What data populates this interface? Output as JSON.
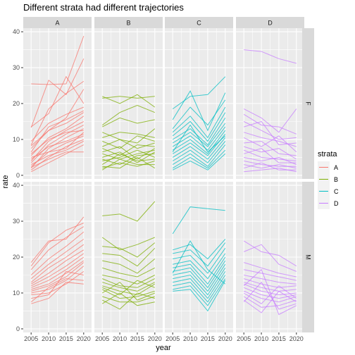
{
  "chart_data": {
    "type": "line",
    "title": "Different strata had different trajectories",
    "xlabel": "year",
    "ylabel": "rate",
    "x": [
      2005,
      2010,
      2015,
      2020
    ],
    "x_ticks": [
      "2005",
      "2010",
      "2015",
      "2020"
    ],
    "ylim": [
      -1,
      41
    ],
    "y_ticks": [
      "0",
      "10",
      "20",
      "30",
      "40"
    ],
    "col_facets": [
      "A",
      "B",
      "C",
      "D"
    ],
    "row_facets": [
      "F",
      "M"
    ],
    "legend": {
      "title": "strata",
      "placement": "right",
      "entries": [
        "A",
        "B",
        "C",
        "D"
      ]
    },
    "colors": {
      "A": "#F8766D",
      "B": "#7CAE00",
      "C": "#00BFC4",
      "D": "#C77CFF"
    },
    "grid": true,
    "panels": [
      {
        "strata": "A",
        "sex": "F",
        "series": [
          {
            "values": [
              25.5,
              25.3,
              25.5,
              38.8
            ]
          },
          {
            "values": [
              13.3,
              26.5,
              22.5,
              32.5
            ]
          },
          {
            "values": [
              13.5,
              17.2,
              27.5,
              20.0
            ]
          },
          {
            "values": [
              8.5,
              18.5,
              22.8,
              26.2
            ]
          },
          {
            "values": [
              8.2,
              12.5,
              16.0,
              24.0
            ]
          },
          {
            "values": [
              9.5,
              14.5,
              17.0,
              19.0
            ]
          },
          {
            "values": [
              6.5,
              13.5,
              15.5,
              18.0
            ]
          },
          {
            "values": [
              7.5,
              12.5,
              14.5,
              17.5
            ]
          },
          {
            "values": [
              5.5,
              10.5,
              13.0,
              16.5
            ]
          },
          {
            "values": [
              4.0,
              9.5,
              12.5,
              15.0
            ]
          },
          {
            "values": [
              3.5,
              8.5,
              11.5,
              14.0
            ]
          },
          {
            "values": [
              2.0,
              7.5,
              10.5,
              13.0
            ]
          },
          {
            "values": [
              6.0,
              10.0,
              12.0,
              12.5
            ]
          },
          {
            "values": [
              4.5,
              8.0,
              9.5,
              11.5
            ]
          },
          {
            "values": [
              2.5,
              6.5,
              9.0,
              11.0
            ]
          },
          {
            "values": [
              1.5,
              5.0,
              8.0,
              10.0
            ]
          },
          {
            "values": [
              3.0,
              5.5,
              7.0,
              9.5
            ]
          },
          {
            "values": [
              1.0,
              3.5,
              6.0,
              8.5
            ]
          },
          {
            "values": [
              5.0,
              6.5,
              7.5,
              12.0
            ]
          },
          {
            "values": [
              2.2,
              4.5,
              6.5,
              6.5
            ]
          }
        ]
      },
      {
        "strata": "B",
        "sex": "F",
        "series": [
          {
            "values": [
              21.5,
              22.0,
              21.5,
              22.0
            ]
          },
          {
            "values": [
              22.0,
              20.0,
              22.5,
              19.0
            ]
          },
          {
            "values": [
              14.0,
              17.5,
              19.5,
              17.5
            ]
          },
          {
            "values": [
              13.5,
              16.0,
              14.5,
              15.5
            ]
          },
          {
            "values": [
              12.0,
              10.0,
              9.0,
              13.0
            ]
          },
          {
            "values": [
              10.5,
              12.0,
              11.5,
              10.5
            ]
          },
          {
            "values": [
              9.5,
              7.5,
              11.0,
              9.5
            ]
          },
          {
            "values": [
              8.0,
              10.0,
              7.5,
              9.0
            ]
          },
          {
            "values": [
              7.5,
              5.5,
              8.5,
              8.0
            ]
          },
          {
            "values": [
              6.5,
              8.0,
              4.5,
              7.5
            ]
          },
          {
            "values": [
              6.0,
              4.5,
              6.0,
              7.0
            ]
          },
          {
            "values": [
              5.0,
              6.5,
              3.5,
              6.5
            ]
          },
          {
            "values": [
              4.5,
              3.0,
              5.5,
              6.0
            ]
          },
          {
            "values": [
              4.0,
              5.0,
              7.0,
              5.0
            ]
          },
          {
            "values": [
              3.0,
              6.0,
              4.0,
              4.5
            ]
          },
          {
            "values": [
              2.0,
              3.5,
              2.5,
              4.0
            ]
          },
          {
            "values": [
              1.5,
              4.5,
              3.0,
              3.0
            ]
          },
          {
            "values": [
              2.5,
              2.0,
              5.0,
              2.0
            ]
          }
        ]
      },
      {
        "strata": "C",
        "sex": "F",
        "series": [
          {
            "values": [
              18.5,
              22.0,
              22.5,
              27.5
            ]
          },
          {
            "values": [
              15.5,
              23.5,
              12.5,
              23.0
            ]
          },
          {
            "values": [
              13.0,
              19.0,
              14.0,
              21.0
            ]
          },
          {
            "values": [
              12.0,
              16.5,
              10.5,
              19.0
            ]
          },
          {
            "values": [
              11.0,
              15.0,
              9.5,
              17.5
            ]
          },
          {
            "values": [
              10.0,
              13.0,
              8.5,
              16.0
            ]
          },
          {
            "values": [
              9.0,
              12.0,
              8.0,
              14.5
            ]
          },
          {
            "values": [
              8.0,
              11.0,
              7.0,
              13.5
            ]
          },
          {
            "values": [
              7.0,
              10.0,
              6.0,
              12.5
            ]
          },
          {
            "values": [
              6.0,
              9.0,
              5.5,
              11.5
            ]
          },
          {
            "values": [
              5.0,
              8.0,
              4.5,
              10.5
            ]
          },
          {
            "values": [
              4.0,
              7.0,
              3.5,
              9.5
            ]
          },
          {
            "values": [
              3.0,
              6.0,
              2.5,
              8.5
            ]
          },
          {
            "values": [
              2.0,
              5.0,
              2.0,
              7.0
            ]
          },
          {
            "values": [
              1.5,
              4.0,
              1.5,
              6.0
            ]
          },
          {
            "values": [
              6.5,
              14.0,
              6.5,
              11.0
            ]
          }
        ]
      },
      {
        "strata": "D",
        "sex": "F",
        "series": [
          {
            "values": [
              35.0,
              34.5,
              32.5,
              31.2
            ]
          },
          {
            "values": [
              18.5,
              16.0,
              12.0,
              18.5
            ]
          },
          {
            "values": [
              17.0,
              14.0,
              13.5,
              11.5
            ]
          },
          {
            "values": [
              15.0,
              12.5,
              10.0,
              10.5
            ]
          },
          {
            "values": [
              13.5,
              15.0,
              8.5,
              9.0
            ]
          },
          {
            "values": [
              12.0,
              10.5,
              9.5,
              8.0
            ]
          },
          {
            "values": [
              10.5,
              8.0,
              11.0,
              6.5
            ]
          },
          {
            "values": [
              9.0,
              9.5,
              6.0,
              5.5
            ]
          },
          {
            "values": [
              8.0,
              6.5,
              7.5,
              4.5
            ]
          },
          {
            "values": [
              7.0,
              5.0,
              4.5,
              4.0
            ]
          },
          {
            "values": [
              6.0,
              7.5,
              3.5,
              3.5
            ]
          },
          {
            "values": [
              5.0,
              4.0,
              5.0,
              3.0
            ]
          },
          {
            "values": [
              4.0,
              3.0,
              2.5,
              2.5
            ]
          },
          {
            "values": [
              3.0,
              2.0,
              3.0,
              2.0
            ]
          },
          {
            "values": [
              2.0,
              3.5,
              1.5,
              1.5
            ]
          },
          {
            "values": [
              1.0,
              1.5,
              2.0,
              1.0
            ]
          }
        ]
      },
      {
        "strata": "A",
        "sex": "M",
        "series": [
          {
            "values": [
              18.5,
              24.5,
              25.0,
              31.2
            ]
          },
          {
            "values": [
              17.5,
              24.0,
              27.5,
              29.5
            ]
          },
          {
            "values": [
              16.5,
              22.0,
              25.5,
              28.5
            ]
          },
          {
            "values": [
              15.0,
              19.5,
              23.0,
              27.0
            ]
          },
          {
            "values": [
              14.0,
              18.0,
              21.5,
              25.0
            ]
          },
          {
            "values": [
              13.0,
              17.0,
              20.0,
              23.5
            ]
          },
          {
            "values": [
              12.5,
              15.5,
              19.0,
              22.0
            ]
          },
          {
            "values": [
              12.0,
              14.5,
              17.5,
              21.0
            ]
          },
          {
            "values": [
              11.5,
              13.5,
              16.5,
              20.0
            ]
          },
          {
            "values": [
              11.0,
              12.5,
              15.5,
              19.0
            ]
          },
          {
            "values": [
              10.5,
              12.0,
              14.5,
              18.5
            ]
          },
          {
            "values": [
              10.0,
              11.0,
              13.5,
              17.5
            ]
          },
          {
            "values": [
              9.5,
              10.0,
              12.5,
              16.0
            ]
          },
          {
            "values": [
              8.5,
              9.5,
              16.0,
              15.0
            ]
          },
          {
            "values": [
              7.5,
              11.5,
              14.0,
              13.5
            ]
          },
          {
            "values": [
              7.0,
              8.5,
              13.0,
              12.5
            ]
          }
        ]
      },
      {
        "strata": "B",
        "sex": "M",
        "series": [
          {
            "values": [
              31.5,
              32.0,
              30.0,
              35.5
            ]
          },
          {
            "values": [
              25.5,
              22.0,
              23.5,
              25.5
            ]
          },
          {
            "values": [
              23.0,
              22.5,
              20.0,
              24.0
            ]
          },
          {
            "values": [
              21.0,
              20.5,
              17.5,
              22.5
            ]
          },
          {
            "values": [
              19.0,
              18.0,
              15.5,
              19.5
            ]
          },
          {
            "values": [
              17.0,
              15.5,
              14.5,
              17.0
            ]
          },
          {
            "values": [
              15.0,
              14.0,
              12.5,
              15.0
            ]
          },
          {
            "values": [
              14.0,
              12.0,
              11.5,
              14.0
            ]
          },
          {
            "values": [
              13.0,
              11.5,
              10.5,
              13.0
            ]
          },
          {
            "values": [
              12.0,
              10.5,
              9.5,
              12.5
            ]
          },
          {
            "values": [
              11.5,
              9.5,
              13.5,
              11.5
            ]
          },
          {
            "values": [
              11.0,
              8.5,
              9.0,
              10.5
            ]
          },
          {
            "values": [
              10.0,
              13.0,
              8.0,
              10.0
            ]
          },
          {
            "values": [
              9.0,
              7.5,
              7.5,
              9.0
            ]
          },
          {
            "values": [
              8.0,
              5.5,
              10.0,
              8.5
            ]
          },
          {
            "values": [
              7.0,
              10.0,
              6.5,
              7.5
            ]
          }
        ]
      },
      {
        "strata": "C",
        "sex": "M",
        "series": [
          {
            "values": [
              26.5,
              34.0,
              33.5,
              33.0
            ]
          },
          {
            "values": [
              22.0,
              23.5,
              19.5,
              25.0
            ]
          },
          {
            "values": [
              21.0,
              22.0,
              17.5,
              24.0
            ]
          },
          {
            "values": [
              19.5,
              20.5,
              15.5,
              22.5
            ]
          },
          {
            "values": [
              18.0,
              19.0,
              14.0,
              21.0
            ]
          },
          {
            "values": [
              17.0,
              18.0,
              12.5,
              20.0
            ]
          },
          {
            "values": [
              16.0,
              17.0,
              11.5,
              19.0
            ]
          },
          {
            "values": [
              15.0,
              16.0,
              10.5,
              18.0
            ]
          },
          {
            "values": [
              14.0,
              15.0,
              9.5,
              17.0
            ]
          },
          {
            "values": [
              13.0,
              14.0,
              8.5,
              16.0
            ]
          },
          {
            "values": [
              12.0,
              13.0,
              7.5,
              15.0
            ]
          },
          {
            "values": [
              11.0,
              12.0,
              6.5,
              14.0
            ]
          },
          {
            "values": [
              10.5,
              11.0,
              5.0,
              13.5
            ]
          },
          {
            "values": [
              15.5,
              24.5,
              16.5,
              12.5
            ]
          }
        ]
      },
      {
        "strata": "D",
        "sex": "M",
        "series": [
          {
            "values": [
              24.5,
              21.5,
              20.5,
              17.5
            ]
          },
          {
            "values": [
              21.5,
              23.5,
              18.0,
              16.0
            ]
          },
          {
            "values": [
              18.5,
              17.0,
              15.5,
              14.5
            ]
          },
          {
            "values": [
              16.5,
              15.5,
              14.5,
              13.5
            ]
          },
          {
            "values": [
              15.0,
              14.0,
              13.0,
              12.5
            ]
          },
          {
            "values": [
              14.0,
              12.5,
              11.5,
              12.0
            ]
          },
          {
            "values": [
              13.0,
              11.5,
              10.5,
              11.0
            ]
          },
          {
            "values": [
              12.5,
              10.5,
              9.5,
              10.0
            ]
          },
          {
            "values": [
              11.5,
              9.5,
              8.5,
              9.5
            ]
          },
          {
            "values": [
              10.5,
              8.5,
              7.5,
              9.0
            ]
          },
          {
            "values": [
              10.0,
              7.0,
              12.0,
              8.5
            ]
          },
          {
            "values": [
              9.0,
              6.0,
              6.5,
              8.0
            ]
          },
          {
            "values": [
              8.0,
              4.5,
              10.5,
              7.5
            ]
          },
          {
            "values": [
              7.5,
              13.0,
              5.5,
              7.0
            ]
          },
          {
            "values": [
              12.0,
              16.5,
              4.0,
              6.5
            ]
          }
        ]
      }
    ]
  }
}
